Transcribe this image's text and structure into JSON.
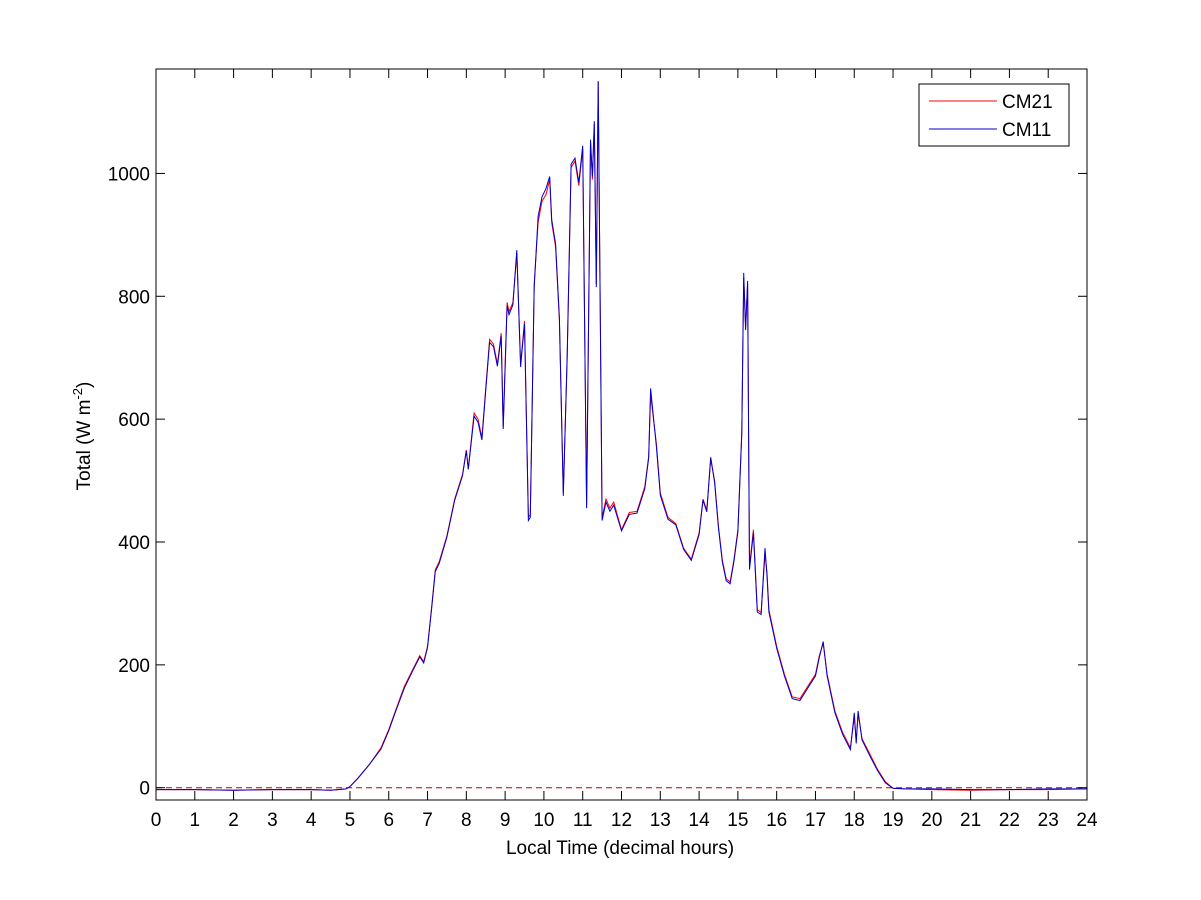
{
  "chart_data": {
    "type": "line",
    "xlabel": "Local Time (decimal hours)",
    "ylabel_main": "Total (W m",
    "ylabel_exp": "-2",
    "ylabel_close": ")",
    "xlim": [
      0,
      24
    ],
    "ylim": [
      -20,
      1170
    ],
    "xticks": [
      0,
      1,
      2,
      3,
      4,
      5,
      6,
      7,
      8,
      9,
      10,
      11,
      12,
      13,
      14,
      15,
      16,
      17,
      18,
      19,
      20,
      21,
      22,
      23,
      24
    ],
    "yticks": [
      0,
      200,
      400,
      600,
      800,
      1000
    ],
    "grid": false,
    "legend_position": "top-right",
    "zero_line": {
      "y": 0,
      "style": "dashed",
      "color": "#c00000"
    },
    "series": [
      {
        "name": "CM21",
        "color": "#ff0000",
        "points": [
          [
            0,
            -3
          ],
          [
            1,
            -3
          ],
          [
            2,
            -4
          ],
          [
            3,
            -3
          ],
          [
            4,
            -3
          ],
          [
            4.5,
            -4
          ],
          [
            4.9,
            -2
          ],
          [
            5.0,
            2
          ],
          [
            5.2,
            15
          ],
          [
            5.5,
            38
          ],
          [
            5.8,
            65
          ],
          [
            6.0,
            95
          ],
          [
            6.2,
            130
          ],
          [
            6.4,
            165
          ],
          [
            6.6,
            190
          ],
          [
            6.8,
            215
          ],
          [
            6.9,
            205
          ],
          [
            7.0,
            230
          ],
          [
            7.1,
            290
          ],
          [
            7.2,
            355
          ],
          [
            7.3,
            368
          ],
          [
            7.5,
            410
          ],
          [
            7.7,
            470
          ],
          [
            7.9,
            510
          ],
          [
            8.0,
            550
          ],
          [
            8.05,
            520
          ],
          [
            8.2,
            610
          ],
          [
            8.3,
            600
          ],
          [
            8.4,
            570
          ],
          [
            8.5,
            650
          ],
          [
            8.6,
            730
          ],
          [
            8.7,
            722
          ],
          [
            8.8,
            690
          ],
          [
            8.9,
            740
          ],
          [
            8.95,
            588
          ],
          [
            9.05,
            790
          ],
          [
            9.1,
            775
          ],
          [
            9.2,
            790
          ],
          [
            9.3,
            870
          ],
          [
            9.4,
            690
          ],
          [
            9.5,
            760
          ],
          [
            9.6,
            440
          ],
          [
            9.65,
            445
          ],
          [
            9.75,
            820
          ],
          [
            9.85,
            920
          ],
          [
            9.95,
            955
          ],
          [
            10.05,
            965
          ],
          [
            10.15,
            990
          ],
          [
            10.2,
            920
          ],
          [
            10.3,
            880
          ],
          [
            10.4,
            760
          ],
          [
            10.5,
            480
          ],
          [
            10.6,
            700
          ],
          [
            10.7,
            1010
          ],
          [
            10.8,
            1020
          ],
          [
            10.9,
            980
          ],
          [
            11.0,
            1040
          ],
          [
            11.1,
            460
          ],
          [
            11.2,
            1050
          ],
          [
            11.25,
            990
          ],
          [
            11.3,
            1080
          ],
          [
            11.35,
            820
          ],
          [
            11.4,
            1150
          ],
          [
            11.5,
            440
          ],
          [
            11.6,
            470
          ],
          [
            11.7,
            455
          ],
          [
            11.8,
            465
          ],
          [
            12.0,
            420
          ],
          [
            12.2,
            448
          ],
          [
            12.4,
            450
          ],
          [
            12.6,
            490
          ],
          [
            12.7,
            540
          ],
          [
            12.75,
            640
          ],
          [
            12.9,
            560
          ],
          [
            13.0,
            480
          ],
          [
            13.2,
            440
          ],
          [
            13.4,
            430
          ],
          [
            13.6,
            390
          ],
          [
            13.8,
            372
          ],
          [
            14.0,
            415
          ],
          [
            14.1,
            470
          ],
          [
            14.2,
            452
          ],
          [
            14.3,
            535
          ],
          [
            14.4,
            500
          ],
          [
            14.5,
            425
          ],
          [
            14.6,
            370
          ],
          [
            14.7,
            340
          ],
          [
            14.8,
            335
          ],
          [
            14.9,
            372
          ],
          [
            15.0,
            420
          ],
          [
            15.1,
            580
          ],
          [
            15.15,
            830
          ],
          [
            15.2,
            750
          ],
          [
            15.25,
            820
          ],
          [
            15.3,
            360
          ],
          [
            15.4,
            420
          ],
          [
            15.5,
            290
          ],
          [
            15.6,
            285
          ],
          [
            15.7,
            380
          ],
          [
            15.75,
            350
          ],
          [
            15.8,
            290
          ],
          [
            16.0,
            230
          ],
          [
            16.2,
            185
          ],
          [
            16.4,
            148
          ],
          [
            16.6,
            145
          ],
          [
            16.8,
            165
          ],
          [
            17.0,
            185
          ],
          [
            17.1,
            215
          ],
          [
            17.2,
            235
          ],
          [
            17.3,
            185
          ],
          [
            17.5,
            125
          ],
          [
            17.7,
            90
          ],
          [
            17.9,
            65
          ],
          [
            18.0,
            115
          ],
          [
            18.05,
            75
          ],
          [
            18.1,
            120
          ],
          [
            18.2,
            80
          ],
          [
            18.4,
            55
          ],
          [
            18.6,
            30
          ],
          [
            18.8,
            10
          ],
          [
            19.0,
            -1
          ],
          [
            19.3,
            -2
          ],
          [
            20,
            -3
          ],
          [
            21,
            -4
          ],
          [
            22,
            -3
          ],
          [
            23,
            -3
          ],
          [
            24,
            -2
          ]
        ]
      },
      {
        "name": "CM11",
        "color": "#0000cc",
        "points": [
          [
            0,
            -3
          ],
          [
            1,
            -3
          ],
          [
            2,
            -4
          ],
          [
            3,
            -3
          ],
          [
            4,
            -3
          ],
          [
            4.5,
            -4
          ],
          [
            4.9,
            -2
          ],
          [
            5.0,
            2
          ],
          [
            5.2,
            15
          ],
          [
            5.5,
            38
          ],
          [
            5.8,
            63
          ],
          [
            6.0,
            93
          ],
          [
            6.2,
            128
          ],
          [
            6.4,
            162
          ],
          [
            6.6,
            188
          ],
          [
            6.8,
            213
          ],
          [
            6.9,
            203
          ],
          [
            7.0,
            228
          ],
          [
            7.1,
            288
          ],
          [
            7.2,
            352
          ],
          [
            7.3,
            365
          ],
          [
            7.5,
            408
          ],
          [
            7.7,
            468
          ],
          [
            7.9,
            508
          ],
          [
            8.0,
            548
          ],
          [
            8.05,
            518
          ],
          [
            8.2,
            605
          ],
          [
            8.3,
            595
          ],
          [
            8.4,
            566
          ],
          [
            8.5,
            646
          ],
          [
            8.6,
            725
          ],
          [
            8.7,
            718
          ],
          [
            8.8,
            686
          ],
          [
            8.9,
            735
          ],
          [
            8.95,
            584
          ],
          [
            9.05,
            785
          ],
          [
            9.1,
            770
          ],
          [
            9.2,
            786
          ],
          [
            9.3,
            875
          ],
          [
            9.4,
            685
          ],
          [
            9.5,
            755
          ],
          [
            9.6,
            435
          ],
          [
            9.65,
            440
          ],
          [
            9.75,
            815
          ],
          [
            9.85,
            930
          ],
          [
            9.95,
            962
          ],
          [
            10.05,
            975
          ],
          [
            10.15,
            995
          ],
          [
            10.2,
            925
          ],
          [
            10.3,
            885
          ],
          [
            10.4,
            765
          ],
          [
            10.5,
            475
          ],
          [
            10.6,
            705
          ],
          [
            10.7,
            1015
          ],
          [
            10.8,
            1025
          ],
          [
            10.9,
            985
          ],
          [
            11.0,
            1045
          ],
          [
            11.1,
            455
          ],
          [
            11.2,
            1055
          ],
          [
            11.25,
            995
          ],
          [
            11.3,
            1085
          ],
          [
            11.35,
            815
          ],
          [
            11.4,
            1150
          ],
          [
            11.5,
            435
          ],
          [
            11.6,
            465
          ],
          [
            11.7,
            450
          ],
          [
            11.8,
            460
          ],
          [
            12.0,
            418
          ],
          [
            12.2,
            445
          ],
          [
            12.4,
            447
          ],
          [
            12.6,
            487
          ],
          [
            12.7,
            537
          ],
          [
            12.75,
            650
          ],
          [
            12.9,
            555
          ],
          [
            13.0,
            476
          ],
          [
            13.2,
            437
          ],
          [
            13.4,
            428
          ],
          [
            13.6,
            388
          ],
          [
            13.8,
            370
          ],
          [
            14.0,
            412
          ],
          [
            14.1,
            468
          ],
          [
            14.2,
            449
          ],
          [
            14.3,
            538
          ],
          [
            14.4,
            497
          ],
          [
            14.5,
            422
          ],
          [
            14.6,
            367
          ],
          [
            14.7,
            337
          ],
          [
            14.8,
            332
          ],
          [
            14.9,
            369
          ],
          [
            15.0,
            417
          ],
          [
            15.1,
            577
          ],
          [
            15.15,
            838
          ],
          [
            15.2,
            745
          ],
          [
            15.25,
            825
          ],
          [
            15.3,
            355
          ],
          [
            15.4,
            415
          ],
          [
            15.5,
            286
          ],
          [
            15.6,
            282
          ],
          [
            15.7,
            390
          ],
          [
            15.75,
            345
          ],
          [
            15.8,
            286
          ],
          [
            16.0,
            227
          ],
          [
            16.2,
            182
          ],
          [
            16.4,
            145
          ],
          [
            16.6,
            142
          ],
          [
            16.8,
            162
          ],
          [
            17.0,
            182
          ],
          [
            17.1,
            212
          ],
          [
            17.2,
            238
          ],
          [
            17.3,
            182
          ],
          [
            17.5,
            122
          ],
          [
            17.7,
            87
          ],
          [
            17.9,
            62
          ],
          [
            18.0,
            122
          ],
          [
            18.05,
            72
          ],
          [
            18.1,
            125
          ],
          [
            18.2,
            78
          ],
          [
            18.4,
            52
          ],
          [
            18.6,
            28
          ],
          [
            18.8,
            8
          ],
          [
            19.0,
            -1
          ],
          [
            19.3,
            -2
          ],
          [
            20,
            -2
          ],
          [
            21,
            -3
          ],
          [
            22,
            -3
          ],
          [
            23,
            -2
          ],
          [
            24,
            -2
          ]
        ]
      }
    ]
  }
}
